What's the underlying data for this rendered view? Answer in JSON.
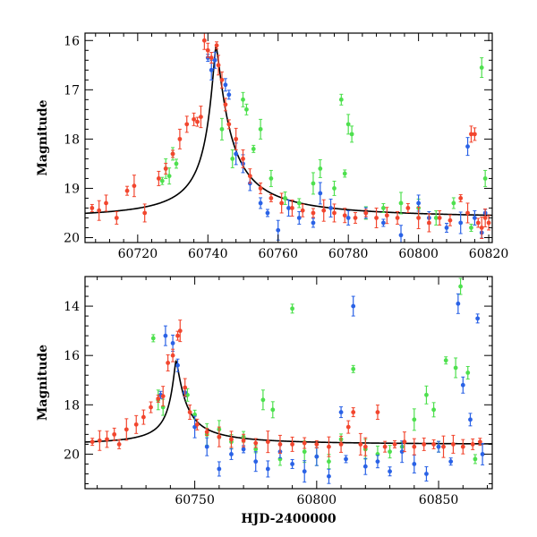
{
  "colors": {
    "model": "#000000",
    "green": "#4ee04e",
    "blue": "#2a62e6",
    "red": "#f2462e"
  },
  "chart_data": [
    {
      "type": "scatter",
      "panel": "top",
      "xlabel": "",
      "ylabel": "Magnitude",
      "xlim": [
        60705,
        60821
      ],
      "ylim": [
        15.85,
        20.1
      ],
      "y_inverted": true,
      "xticks": [
        60720,
        60740,
        60760,
        60780,
        60800,
        60820
      ],
      "xtick_labels": [
        "60720",
        "60740",
        "60760",
        "60780",
        "60800",
        "60820"
      ],
      "yticks": [
        16,
        17,
        18,
        19,
        20
      ],
      "ytick_labels": [
        "16",
        "17",
        "18",
        "19",
        "20"
      ],
      "model_curve": {
        "peak_x": 60742.3,
        "peak_mag": 16.1,
        "baseline_mag": 19.62,
        "rise_scale": 5.0,
        "fall_scale": 7.5
      },
      "series": [
        {
          "color_key": "green",
          "points": [
            [
              60727,
              18.85
            ],
            [
              60728,
              18.6
            ],
            [
              60729,
              18.75
            ],
            [
              60730,
              18.3
            ],
            [
              60731,
              18.5
            ],
            [
              60744,
              17.8
            ],
            [
              60747,
              18.4
            ],
            [
              60750,
              17.2
            ],
            [
              60751,
              17.4
            ],
            [
              60753,
              18.2
            ],
            [
              60755,
              17.8
            ],
            [
              60758,
              18.8
            ],
            [
              60762,
              19.2
            ],
            [
              60766,
              19.3
            ],
            [
              60770,
              18.9
            ],
            [
              60772,
              18.6
            ],
            [
              60776,
              19.0
            ],
            [
              60778,
              17.2
            ],
            [
              60779,
              18.7
            ],
            [
              60780,
              17.7
            ],
            [
              60781,
              17.9
            ],
            [
              60785,
              19.5
            ],
            [
              60790,
              19.4
            ],
            [
              60795,
              19.3
            ],
            [
              60800,
              19.4
            ],
            [
              60805,
              19.6
            ],
            [
              60810,
              19.3
            ],
            [
              60815,
              19.8
            ],
            [
              60818,
              16.55
            ],
            [
              60819,
              18.8
            ]
          ]
        },
        {
          "color_key": "blue",
          "points": [
            [
              60740,
              16.35
            ],
            [
              60741,
              16.6
            ],
            [
              60742,
              16.4
            ],
            [
              60745,
              16.9
            ],
            [
              60746,
              17.1
            ],
            [
              60748,
              18.3
            ],
            [
              60750,
              18.5
            ],
            [
              60752,
              18.9
            ],
            [
              60755,
              19.3
            ],
            [
              60757,
              19.5
            ],
            [
              60760,
              19.85
            ],
            [
              60763,
              19.4
            ],
            [
              60766,
              19.6
            ],
            [
              60770,
              19.7
            ],
            [
              60772,
              19.1
            ],
            [
              60775,
              19.4
            ],
            [
              60780,
              19.6
            ],
            [
              60785,
              19.5
            ],
            [
              60790,
              19.7
            ],
            [
              60795,
              19.95
            ],
            [
              60800,
              19.3
            ],
            [
              60803,
              19.6
            ],
            [
              60808,
              19.8
            ],
            [
              60812,
              19.7
            ],
            [
              60814,
              18.15
            ],
            [
              60816,
              19.6
            ],
            [
              60818,
              19.9
            ],
            [
              60819,
              19.5
            ]
          ]
        },
        {
          "color_key": "red",
          "points": [
            [
              60707,
              19.4
            ],
            [
              60709,
              19.45
            ],
            [
              60711,
              19.3
            ],
            [
              60714,
              19.6
            ],
            [
              60717,
              19.05
            ],
            [
              60719,
              18.95
            ],
            [
              60722,
              19.5
            ],
            [
              60726,
              18.8
            ],
            [
              60728,
              18.6
            ],
            [
              60730,
              18.3
            ],
            [
              60732,
              18.0
            ],
            [
              60734,
              17.7
            ],
            [
              60736,
              17.6
            ],
            [
              60737,
              17.65
            ],
            [
              60738,
              17.55
            ],
            [
              60739,
              16.0
            ],
            [
              60740,
              16.2
            ],
            [
              60741,
              16.35
            ],
            [
              60742.5,
              16.1
            ],
            [
              60743,
              16.5
            ],
            [
              60744,
              16.8
            ],
            [
              60745,
              17.3
            ],
            [
              60746,
              17.7
            ],
            [
              60748,
              18.0
            ],
            [
              60750,
              18.4
            ],
            [
              60752,
              18.75
            ],
            [
              60755,
              19.0
            ],
            [
              60758,
              19.2
            ],
            [
              60761,
              19.3
            ],
            [
              60764,
              19.4
            ],
            [
              60767,
              19.45
            ],
            [
              60770,
              19.5
            ],
            [
              60773,
              19.45
            ],
            [
              60776,
              19.5
            ],
            [
              60779,
              19.55
            ],
            [
              60782,
              19.6
            ],
            [
              60785,
              19.5
            ],
            [
              60788,
              19.6
            ],
            [
              60791,
              19.55
            ],
            [
              60794,
              19.6
            ],
            [
              60797,
              19.4
            ],
            [
              60800,
              19.6
            ],
            [
              60803,
              19.7
            ],
            [
              60806,
              19.6
            ],
            [
              60809,
              19.65
            ],
            [
              60812,
              19.2
            ],
            [
              60814,
              19.5
            ],
            [
              60815,
              17.9
            ],
            [
              60816,
              17.9
            ],
            [
              60817,
              19.7
            ],
            [
              60818,
              19.8
            ],
            [
              60819,
              19.6
            ],
            [
              60820,
              19.7
            ]
          ]
        }
      ]
    },
    {
      "type": "scatter",
      "panel": "bottom",
      "xlabel": "HJD-2400000",
      "ylabel": "Magnitude",
      "xlim": [
        60705,
        60872
      ],
      "ylim": [
        12.8,
        21.4
      ],
      "y_inverted": true,
      "xticks": [
        60750,
        60800,
        60850
      ],
      "xtick_labels": [
        "60750",
        "60800",
        "60850"
      ],
      "yticks": [
        14,
        16,
        18,
        20
      ],
      "ytick_labels": [
        "14",
        "16",
        "18",
        "20"
      ],
      "model_curve": {
        "peak_x": 60742.3,
        "peak_mag": 16.2,
        "baseline_mag": 19.62,
        "rise_scale": 5.0,
        "fall_scale": 7.5
      },
      "series": [
        {
          "color_key": "green",
          "points": [
            [
              60733,
              15.3
            ],
            [
              60735,
              17.8
            ],
            [
              60737,
              18.1
            ],
            [
              60747,
              17.6
            ],
            [
              60750,
              18.4
            ],
            [
              60755,
              19.2
            ],
            [
              60760,
              19.0
            ],
            [
              60765,
              19.5
            ],
            [
              60770,
              19.3
            ],
            [
              60775,
              19.8
            ],
            [
              60778,
              17.8
            ],
            [
              60782,
              18.2
            ],
            [
              60785,
              20.2
            ],
            [
              60790,
              14.1
            ],
            [
              60795,
              19.9
            ],
            [
              60800,
              20.1
            ],
            [
              60805,
              20.3
            ],
            [
              60810,
              19.4
            ],
            [
              60815,
              16.55
            ],
            [
              60820,
              19.8
            ],
            [
              60825,
              20.0
            ],
            [
              60830,
              19.9
            ],
            [
              60835,
              19.7
            ],
            [
              60840,
              18.6
            ],
            [
              60845,
              17.6
            ],
            [
              60848,
              18.2
            ],
            [
              60850,
              19.7
            ],
            [
              60853,
              16.2
            ],
            [
              60857,
              16.5
            ],
            [
              60859,
              13.2
            ],
            [
              60862,
              16.7
            ],
            [
              60865,
              20.2
            ]
          ]
        },
        {
          "color_key": "blue",
          "points": [
            [
              60736,
              17.6
            ],
            [
              60738,
              15.2
            ],
            [
              60741,
              15.5
            ],
            [
              60743,
              16.4
            ],
            [
              60746,
              17.5
            ],
            [
              60750,
              18.9
            ],
            [
              60755,
              19.7
            ],
            [
              60760,
              20.6
            ],
            [
              60765,
              20.0
            ],
            [
              60770,
              19.8
            ],
            [
              60775,
              20.3
            ],
            [
              60780,
              20.6
            ],
            [
              60785,
              19.9
            ],
            [
              60790,
              20.4
            ],
            [
              60795,
              20.7
            ],
            [
              60800,
              20.1
            ],
            [
              60805,
              20.9
            ],
            [
              60810,
              18.3
            ],
            [
              60812,
              20.2
            ],
            [
              60815,
              14.0
            ],
            [
              60820,
              20.5
            ],
            [
              60825,
              20.3
            ],
            [
              60830,
              20.7
            ],
            [
              60835,
              19.9
            ],
            [
              60840,
              20.4
            ],
            [
              60845,
              20.8
            ],
            [
              60850,
              19.7
            ],
            [
              60855,
              20.3
            ],
            [
              60858,
              13.9
            ],
            [
              60860,
              17.2
            ],
            [
              60863,
              18.6
            ],
            [
              60866,
              14.5
            ],
            [
              60868,
              20.0
            ]
          ]
        },
        {
          "color_key": "red",
          "points": [
            [
              60708,
              19.5
            ],
            [
              60711,
              19.45
            ],
            [
              60714,
              19.4
            ],
            [
              60717,
              19.2
            ],
            [
              60719,
              19.6
            ],
            [
              60722,
              19.0
            ],
            [
              60726,
              18.8
            ],
            [
              60729,
              18.5
            ],
            [
              60732,
              18.1
            ],
            [
              60735,
              17.75
            ],
            [
              60737,
              17.65
            ],
            [
              60739,
              16.3
            ],
            [
              60741,
              16.0
            ],
            [
              60743,
              15.2
            ],
            [
              60744,
              15.0
            ],
            [
              60746,
              17.3
            ],
            [
              60748,
              18.3
            ],
            [
              60751,
              18.8
            ],
            [
              60755,
              19.1
            ],
            [
              60760,
              19.3
            ],
            [
              60765,
              19.4
            ],
            [
              60770,
              19.45
            ],
            [
              60775,
              19.55
            ],
            [
              60780,
              19.5
            ],
            [
              60785,
              19.6
            ],
            [
              60790,
              19.6
            ],
            [
              60795,
              19.55
            ],
            [
              60800,
              19.6
            ],
            [
              60805,
              19.7
            ],
            [
              60810,
              19.6
            ],
            [
              60813,
              18.9
            ],
            [
              60815,
              18.3
            ],
            [
              60818,
              19.6
            ],
            [
              60820,
              19.7
            ],
            [
              60825,
              18.3
            ],
            [
              60828,
              19.7
            ],
            [
              60832,
              19.6
            ],
            [
              60836,
              19.5
            ],
            [
              60840,
              19.7
            ],
            [
              60844,
              19.6
            ],
            [
              60848,
              19.6
            ],
            [
              60852,
              19.7
            ],
            [
              60856,
              19.6
            ],
            [
              60860,
              19.7
            ],
            [
              60864,
              19.6
            ],
            [
              60867,
              19.5
            ]
          ]
        }
      ]
    }
  ]
}
